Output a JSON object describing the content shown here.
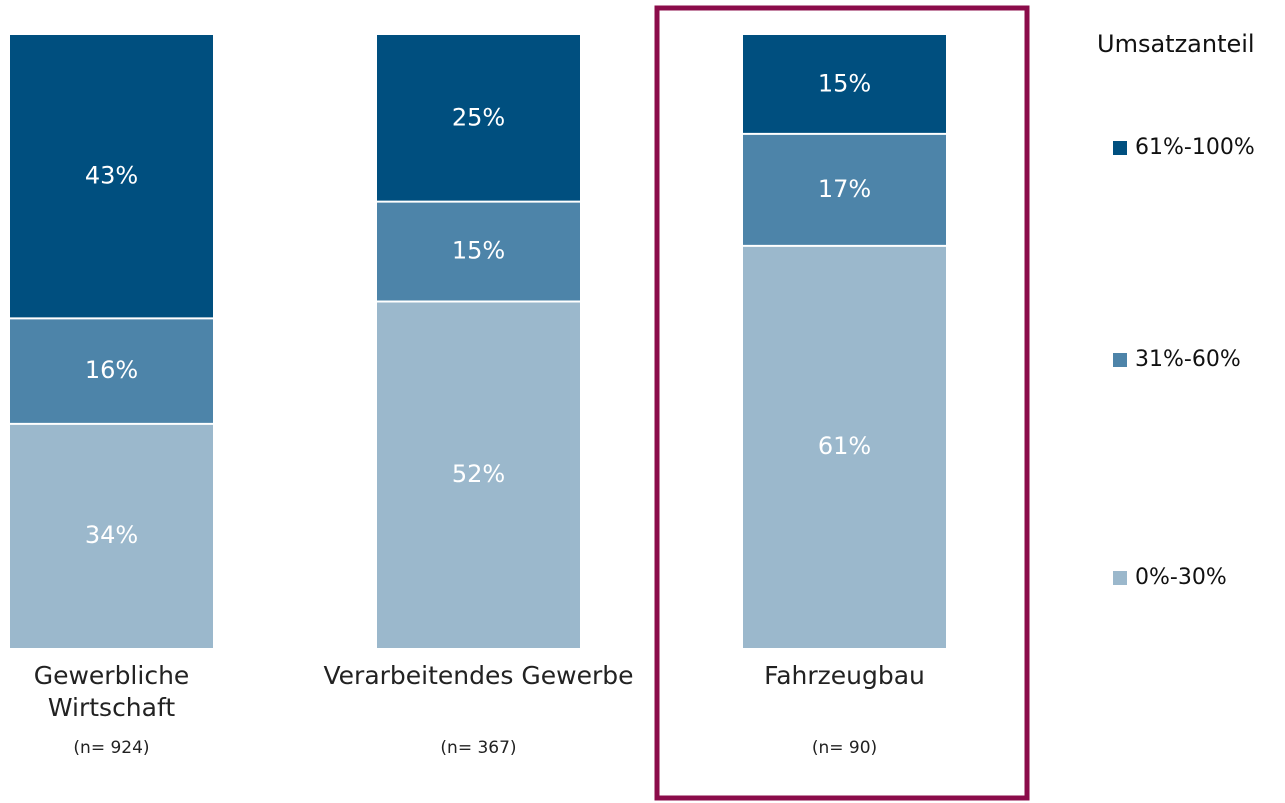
{
  "chart_data": {
    "type": "stacked-bar",
    "categories": [
      "Gewerbliche Wirtschaft",
      "Verarbeitendes Gewerbe",
      "Fahrzeugbau"
    ],
    "annotations": [
      "(n= 924)",
      "(n= 367)",
      "(n= 90)"
    ],
    "legend_title": "Umsatzanteil",
    "legend": "right",
    "highlight": 2,
    "highlight_color": "#8b0c4a",
    "series": [
      {
        "name": "61%-100%",
        "color": "#004f7f",
        "values": [
          43,
          25,
          15
        ],
        "value_labels": [
          "43%",
          "25%",
          "15%"
        ]
      },
      {
        "name": "31%-60%",
        "color": "#4d84a9",
        "values": [
          16,
          15,
          17
        ],
        "value_labels": [
          "16%",
          "15%",
          "17%"
        ]
      },
      {
        "name": "0%-30%",
        "color": "#9bb8cc",
        "values": [
          34,
          52,
          61
        ],
        "value_labels": [
          "34%",
          "52%",
          "61%"
        ]
      }
    ]
  }
}
